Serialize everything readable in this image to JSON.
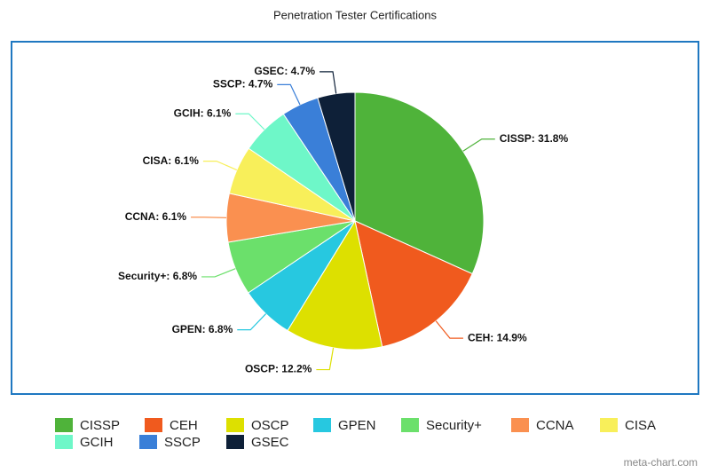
{
  "chart_data": {
    "type": "pie",
    "title": "Penetration Tester Certifications",
    "categories": [
      "CISSP",
      "CEH",
      "OSCP",
      "GPEN",
      "Security+",
      "CCNA",
      "CISA",
      "GCIH",
      "SSCP",
      "GSEC"
    ],
    "values": [
      31.8,
      14.9,
      12.2,
      6.8,
      6.8,
      6.1,
      6.1,
      6.1,
      4.7,
      4.7
    ],
    "value_labels": [
      "CISSP: 31.8%",
      "CEH: 14.9%",
      "OSCP: 12.2%",
      "GPEN: 6.8%",
      "Security+: 6.8%",
      "CCNA: 6.1%",
      "CISA: 6.1%",
      "GCIH: 6.1%",
      "SSCP: 4.7%",
      "GSEC: 4.7%"
    ],
    "colors": [
      "#4fb33a",
      "#f05a1e",
      "#dde000",
      "#27c8e0",
      "#6be06b",
      "#fa9050",
      "#f8ef5a",
      "#6ef7c8",
      "#3a7fd8",
      "#0e2038"
    ],
    "watermark": "meta-chart.com"
  }
}
